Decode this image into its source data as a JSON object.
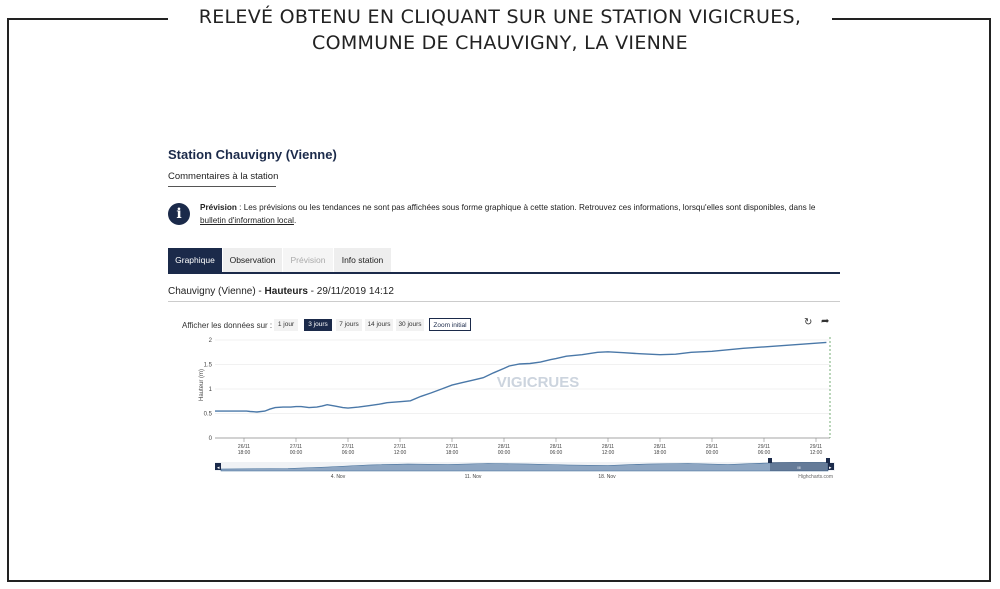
{
  "caption": {
    "line1": "RELEVÉ OBTENU EN CLIQUANT SUR UNE STATION VIGICRUES,",
    "line2": "COMMUNE DE CHAUVIGNY, LA VIENNE"
  },
  "station": {
    "title": "Station Chauvigny (Vienne)",
    "comments_link": "Commentaires à la station"
  },
  "info": {
    "icon": "info-icon",
    "label": "Prévision",
    "text": " : Les prévisions ou les tendances ne sont pas affichées sous forme graphique à cette station. Retrouvez ces informations, lorsqu'elles sont disponibles, dans le ",
    "link": "bulletin d'information local",
    "end": "."
  },
  "tabs": [
    {
      "label": "Graphique",
      "state": "active"
    },
    {
      "label": "Observation",
      "state": "normal"
    },
    {
      "label": "Prévision",
      "state": "disabled"
    },
    {
      "label": "Info station",
      "state": "normal"
    }
  ],
  "subtitle": {
    "place": "Chauvigny (Vienne) - ",
    "measure": "Hauteurs",
    "datetime": " - 29/11/2019 14:12"
  },
  "range_selector": {
    "label": "Afficher les données sur :",
    "buttons": [
      "1 jour",
      "3 jours",
      "7 jours",
      "14 jours",
      "30 jours"
    ],
    "active": "3 jours",
    "zoom_label": "Zoom initial"
  },
  "toolbar": {
    "refresh_icon": "refresh-icon",
    "share_icon": "share-arrow-icon"
  },
  "watermark": "VIGICRUES",
  "credits": "Highcharts.com",
  "navigator": {
    "labels": [
      "4. Nov",
      "11. Nov",
      "18. Nov"
    ],
    "handle_label": "III"
  },
  "chart_data": {
    "type": "line",
    "ylabel": "Hauteur (m)",
    "ylim": [
      0,
      2
    ],
    "yticks": [
      "0",
      "0.5",
      "1",
      "1.5",
      "2"
    ],
    "xticks": [
      {
        "date": "26/11",
        "time": "18:00"
      },
      {
        "date": "27/11",
        "time": "00:00"
      },
      {
        "date": "27/11",
        "time": "06:00"
      },
      {
        "date": "27/11",
        "time": "12:00"
      },
      {
        "date": "27/11",
        "time": "18:00"
      },
      {
        "date": "28/11",
        "time": "00:00"
      },
      {
        "date": "28/11",
        "time": "06:00"
      },
      {
        "date": "28/11",
        "time": "12:00"
      },
      {
        "date": "28/11",
        "time": "18:00"
      },
      {
        "date": "29/11",
        "time": "00:00"
      },
      {
        "date": "29/11",
        "time": "06:00"
      },
      {
        "date": "29/11",
        "time": "12:00"
      }
    ],
    "series": [
      {
        "color": "#4a78a8",
        "points": [
          [
            0,
            0.55
          ],
          [
            0.05,
            0.55
          ],
          [
            0.12,
            0.54
          ],
          [
            0.25,
            0.53
          ],
          [
            0.4,
            0.55
          ],
          [
            0.5,
            0.59
          ],
          [
            0.6,
            0.62
          ],
          [
            0.75,
            0.63
          ],
          [
            0.9,
            0.63
          ],
          [
            1.0,
            0.64
          ],
          [
            1.1,
            0.64
          ],
          [
            1.25,
            0.62
          ],
          [
            1.4,
            0.63
          ],
          [
            1.5,
            0.65
          ],
          [
            1.6,
            0.68
          ],
          [
            1.75,
            0.65
          ],
          [
            1.9,
            0.62
          ],
          [
            2.0,
            0.61
          ],
          [
            2.2,
            0.63
          ],
          [
            2.4,
            0.66
          ],
          [
            2.6,
            0.69
          ],
          [
            2.75,
            0.72
          ],
          [
            3.0,
            0.74
          ],
          [
            3.2,
            0.76
          ],
          [
            3.4,
            0.85
          ],
          [
            3.6,
            0.92
          ],
          [
            3.8,
            1.0
          ],
          [
            4.0,
            1.08
          ],
          [
            4.2,
            1.13
          ],
          [
            4.4,
            1.18
          ],
          [
            4.6,
            1.23
          ],
          [
            4.8,
            1.33
          ],
          [
            5.0,
            1.42
          ],
          [
            5.1,
            1.47
          ],
          [
            5.3,
            1.51
          ],
          [
            5.5,
            1.52
          ],
          [
            5.7,
            1.55
          ],
          [
            5.9,
            1.6
          ],
          [
            6.0,
            1.62
          ],
          [
            6.2,
            1.67
          ],
          [
            6.5,
            1.7
          ],
          [
            6.8,
            1.75
          ],
          [
            7.0,
            1.76
          ],
          [
            7.3,
            1.74
          ],
          [
            7.6,
            1.72
          ],
          [
            8.0,
            1.7
          ],
          [
            8.3,
            1.71
          ],
          [
            8.6,
            1.75
          ],
          [
            9.0,
            1.77
          ],
          [
            9.3,
            1.8
          ],
          [
            9.6,
            1.83
          ],
          [
            10.0,
            1.86
          ],
          [
            10.4,
            1.89
          ],
          [
            10.8,
            1.92
          ],
          [
            11.2,
            1.95
          ]
        ]
      }
    ]
  }
}
